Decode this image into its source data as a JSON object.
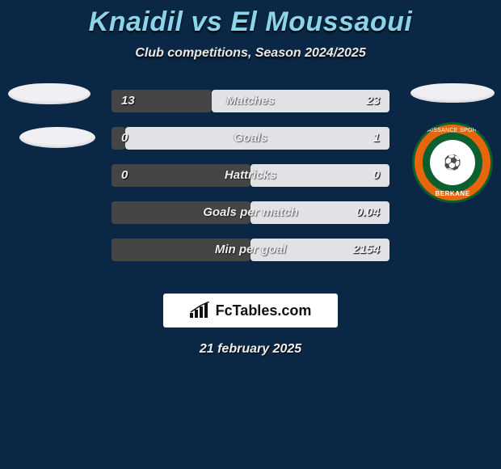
{
  "title": {
    "player1": "Knaidil",
    "vs": "vs",
    "player2": "El Moussaoui"
  },
  "subtitle": "Club competitions, Season 2024/2025",
  "colors": {
    "background": "#0a2845",
    "title": "#8ad6e8",
    "bar_left": "#464545",
    "bar_right": "#e1e2e6"
  },
  "left_badges": [
    {
      "name": "placeholder-oval-1"
    },
    {
      "name": "placeholder-oval-2"
    }
  ],
  "right_badges": [
    {
      "name": "placeholder-oval-3"
    },
    {
      "name": "rs-berkane-badge",
      "top_text": "RENAISSANCE SPORTIVE",
      "bottom_text": "BERKANE",
      "ring_color": "#e8660b",
      "border_color": "#0c5f2f",
      "center_bg": "#ffffff",
      "center_glyph": "⚽"
    }
  ],
  "rows": [
    {
      "label": "Matches",
      "left": "13",
      "right": "23",
      "left_pct": 36
    },
    {
      "label": "Goals",
      "left": "0",
      "right": "1",
      "left_pct": 5
    },
    {
      "label": "Hattricks",
      "left": "0",
      "right": "0",
      "left_pct": 50
    },
    {
      "label": "Goals per match",
      "left": "",
      "right": "0.04",
      "left_pct": 50
    },
    {
      "label": "Min per goal",
      "left": "",
      "right": "2154",
      "left_pct": 50
    }
  ],
  "brand": {
    "text": "FcTables.com"
  },
  "date": "21 february 2025"
}
